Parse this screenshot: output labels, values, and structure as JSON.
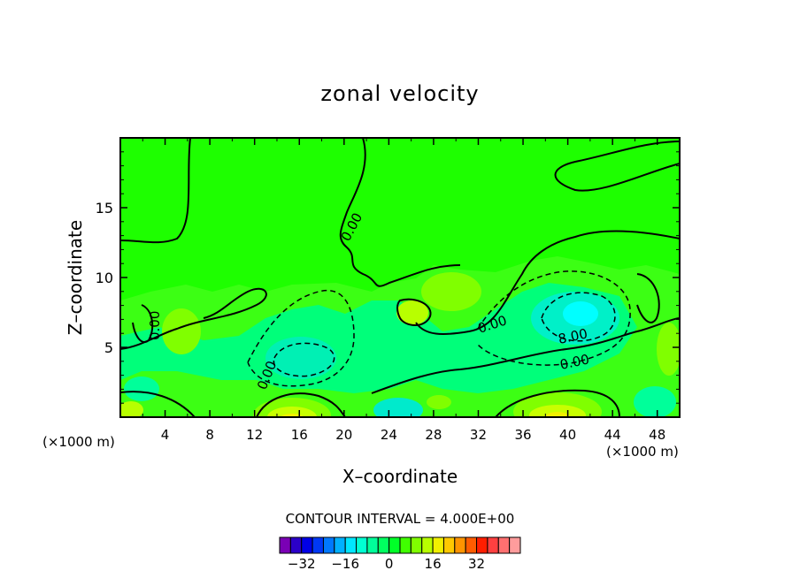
{
  "chart_data": {
    "type": "heatmap",
    "title": "zonal velocity",
    "xlabel": "X–coordinate",
    "ylabel": "Z–coordinate",
    "x_unit_left": "(×1000 m)",
    "x_unit_right": "(×1000 m)",
    "xlim": [
      0,
      50
    ],
    "ylim": [
      0,
      20
    ],
    "x_ticks": [
      4,
      8,
      12,
      16,
      20,
      24,
      28,
      32,
      36,
      40,
      44,
      48
    ],
    "y_ticks": [
      5,
      10,
      15
    ],
    "contour_interval_text": "CONTOUR INTERVAL = 4.000E+00",
    "contour_labels": [
      "0.00",
      "0.00",
      "0.00",
      "0.00",
      "0.00",
      "8.00"
    ],
    "colorbar": {
      "ticks": [
        "−32",
        "−16",
        "0",
        "16",
        "32"
      ],
      "colors": [
        "#7a00b5",
        "#2b00c8",
        "#0000e6",
        "#0038f5",
        "#0078ff",
        "#00b0ff",
        "#00e6ff",
        "#00ffd2",
        "#00ff9a",
        "#00ff60",
        "#00ff28",
        "#40ff00",
        "#80ff00",
        "#b8ff00",
        "#f0f000",
        "#ffc800",
        "#ff9400",
        "#ff5c00",
        "#ff1e00",
        "#ff4040",
        "#ff7070",
        "#ff9c9c"
      ]
    },
    "background_color": "#1eff00"
  }
}
